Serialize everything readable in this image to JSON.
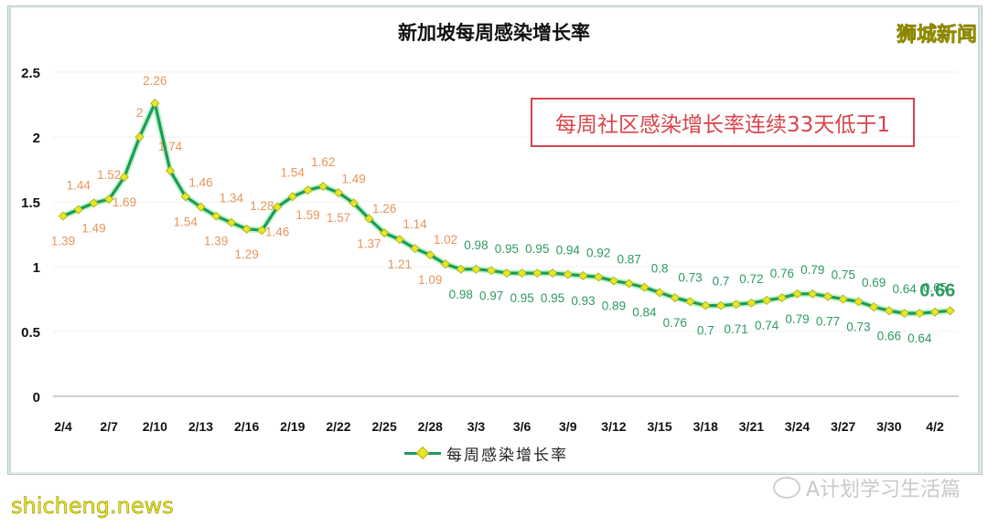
{
  "header": {
    "title": "新加坡每周感染增长率",
    "brand": "狮城新闻"
  },
  "callout": {
    "text": "每周社区感染增长率连续33天低于1"
  },
  "legend": {
    "label": "每周感染增长率"
  },
  "watermarks": {
    "bottom_right": "A计划学习生活篇",
    "bottom_left": "shicheng.news"
  },
  "colors": {
    "line": "#1e9a5a",
    "marker": "#e6e62a",
    "label_above_one": "#e8955a",
    "label_below_one": "#2e9a63",
    "callout": "#d9444b"
  },
  "chart_data": {
    "type": "line",
    "title": "新加坡每周感染增长率",
    "xlabel": "",
    "ylabel": "",
    "ylim": [
      0,
      2.5
    ],
    "yticks": [
      0,
      0.5,
      1,
      1.5,
      2,
      2.5
    ],
    "grid": true,
    "legend_position": "bottom",
    "x_tick_labels": [
      "2/4",
      "2/7",
      "2/10",
      "2/13",
      "2/16",
      "2/19",
      "2/22",
      "2/25",
      "2/28",
      "3/3",
      "3/6",
      "3/9",
      "3/12",
      "3/15",
      "3/18",
      "3/21",
      "3/24",
      "3/27",
      "3/30",
      "4/2"
    ],
    "x": [
      "2/4",
      "2/5",
      "2/6",
      "2/7",
      "2/8",
      "2/9",
      "2/10",
      "2/11",
      "2/12",
      "2/13",
      "2/14",
      "2/15",
      "2/16",
      "2/17",
      "2/18",
      "2/19",
      "2/20",
      "2/21",
      "2/22",
      "2/23",
      "2/24",
      "2/25",
      "2/26",
      "2/27",
      "2/28",
      "3/1",
      "3/2",
      "3/3",
      "3/4",
      "3/5",
      "3/6",
      "3/7",
      "3/8",
      "3/9",
      "3/10",
      "3/11",
      "3/12",
      "3/13",
      "3/14",
      "3/15",
      "3/16",
      "3/17",
      "3/18",
      "3/19",
      "3/20",
      "3/21",
      "3/22",
      "3/23",
      "3/24",
      "3/25",
      "3/26",
      "3/27",
      "3/28",
      "3/29",
      "3/30",
      "3/31",
      "4/1",
      "4/2",
      "4/3"
    ],
    "series": [
      {
        "name": "每周感染增长率",
        "values": [
          1.39,
          1.44,
          1.49,
          1.52,
          1.69,
          2,
          2.26,
          1.74,
          1.54,
          1.46,
          1.39,
          1.34,
          1.29,
          1.28,
          1.46,
          1.54,
          1.59,
          1.62,
          1.57,
          1.49,
          1.37,
          1.26,
          1.21,
          1.14,
          1.09,
          1.02,
          0.98,
          0.98,
          0.97,
          0.95,
          0.95,
          0.95,
          0.95,
          0.94,
          0.93,
          0.92,
          0.89,
          0.87,
          0.84,
          0.8,
          0.76,
          0.73,
          0.7,
          0.7,
          0.71,
          0.72,
          0.74,
          0.76,
          0.79,
          0.79,
          0.77,
          0.75,
          0.73,
          0.69,
          0.66,
          0.64,
          0.64,
          0.65,
          0.66
        ]
      }
    ],
    "annotations": [
      "每周社区感染增长率连续33天低于1",
      "0.66 (latest, emphasized)"
    ]
  }
}
